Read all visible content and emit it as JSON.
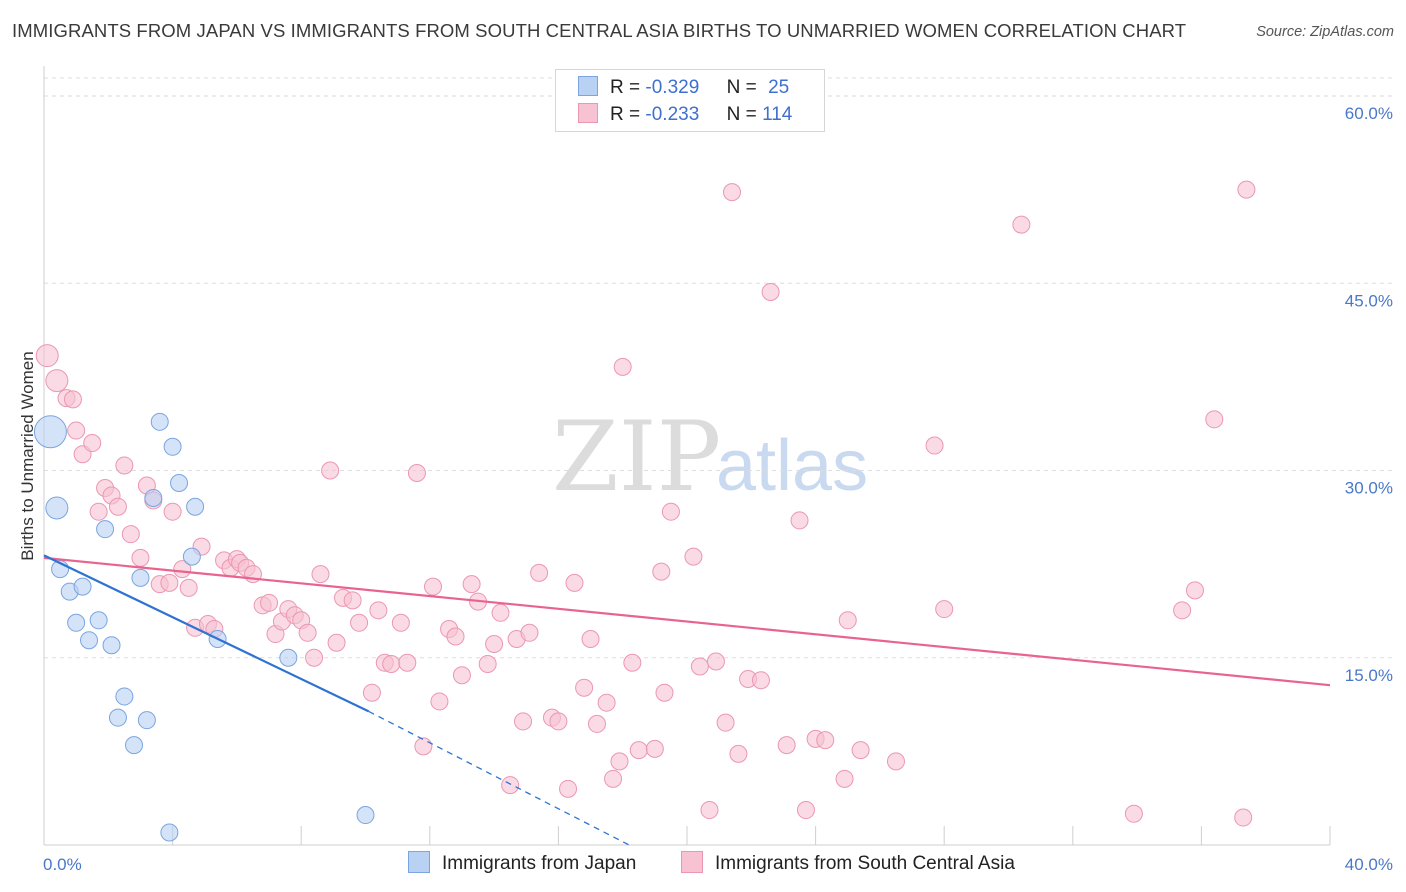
{
  "title": "IMMIGRANTS FROM JAPAN VS IMMIGRANTS FROM SOUTH CENTRAL ASIA BIRTHS TO UNMARRIED WOMEN CORRELATION CHART",
  "source": "Source: ZipAtlas.com",
  "watermark": {
    "zip": "ZIP",
    "atlas": "atlas"
  },
  "legend": {
    "r_label": "R =",
    "n_label": "N =",
    "series": [
      {
        "name": "Immigrants from Japan",
        "r": "-0.329",
        "n": "25"
      },
      {
        "name": "Immigrants from South Central Asia",
        "r": "-0.233",
        "n": "114"
      }
    ]
  },
  "colors": {
    "japan_fill": "#b9d1f3",
    "japan_stroke": "#7aa5e0",
    "japan_line": "#2f73d2",
    "sca_fill": "#f7c2d2",
    "sca_stroke": "#ec97b2",
    "sca_line": "#e8648f",
    "tick": "#4a78c9",
    "grid": "#dddddd"
  },
  "chart_data": {
    "type": "scatter",
    "title": "IMMIGRANTS FROM JAPAN VS IMMIGRANTS FROM SOUTH CENTRAL ASIA BIRTHS TO UNMARRIED WOMEN CORRELATION CHART",
    "xlabel": "",
    "ylabel": "Births to Unmarried Women",
    "xlim": [
      0,
      40
    ],
    "ylim": [
      0,
      60
    ],
    "x_ticks": [
      {
        "v": 0,
        "label": "0.0%"
      },
      {
        "v": 40,
        "label": "40.0%"
      }
    ],
    "y_ticks": [
      {
        "v": 15,
        "label": "15.0%"
      },
      {
        "v": 30,
        "label": "30.0%"
      },
      {
        "v": 45,
        "label": "45.0%"
      },
      {
        "v": 60,
        "label": "60.0%"
      }
    ],
    "series": [
      {
        "name": "Immigrants from Japan",
        "trend": {
          "x0": 0,
          "y0": 23.2,
          "x1": 10.1,
          "y1": 10.7,
          "dash_x1": 18.2,
          "dash_y1": 0
        },
        "points": [
          {
            "x": 0.2,
            "y": 33.1,
            "s": 3
          },
          {
            "x": 0.4,
            "y": 27.0,
            "s": 2
          },
          {
            "x": 0.5,
            "y": 22.1,
            "s": 1
          },
          {
            "x": 0.8,
            "y": 20.3,
            "s": 1
          },
          {
            "x": 1.2,
            "y": 20.7,
            "s": 1
          },
          {
            "x": 1.0,
            "y": 17.8,
            "s": 1
          },
          {
            "x": 1.4,
            "y": 16.4,
            "s": 1
          },
          {
            "x": 1.7,
            "y": 18.0,
            "s": 1
          },
          {
            "x": 2.1,
            "y": 16.0,
            "s": 1
          },
          {
            "x": 1.9,
            "y": 25.3,
            "s": 1
          },
          {
            "x": 2.5,
            "y": 11.9,
            "s": 1
          },
          {
            "x": 2.3,
            "y": 10.2,
            "s": 1
          },
          {
            "x": 2.8,
            "y": 8.0,
            "s": 1
          },
          {
            "x": 3.2,
            "y": 10.0,
            "s": 1
          },
          {
            "x": 3.0,
            "y": 21.4,
            "s": 1
          },
          {
            "x": 3.4,
            "y": 27.8,
            "s": 1
          },
          {
            "x": 3.6,
            "y": 33.9,
            "s": 1
          },
          {
            "x": 4.0,
            "y": 31.9,
            "s": 1
          },
          {
            "x": 4.2,
            "y": 29.0,
            "s": 1
          },
          {
            "x": 4.7,
            "y": 27.1,
            "s": 1
          },
          {
            "x": 4.6,
            "y": 23.1,
            "s": 1
          },
          {
            "x": 5.4,
            "y": 16.5,
            "s": 1
          },
          {
            "x": 7.6,
            "y": 15.0,
            "s": 1
          },
          {
            "x": 10.0,
            "y": 2.4,
            "s": 1
          },
          {
            "x": 3.9,
            "y": 1.0,
            "s": 1
          }
        ]
      },
      {
        "name": "Immigrants from South Central Asia",
        "trend": {
          "x0": 0,
          "y0": 23.0,
          "x1": 40,
          "y1": 12.8
        },
        "points": [
          {
            "x": 0.1,
            "y": 39.2,
            "s": 2
          },
          {
            "x": 0.4,
            "y": 37.2,
            "s": 2
          },
          {
            "x": 0.7,
            "y": 35.8,
            "s": 1
          },
          {
            "x": 0.9,
            "y": 35.7,
            "s": 1
          },
          {
            "x": 1.0,
            "y": 33.2,
            "s": 1
          },
          {
            "x": 1.2,
            "y": 31.3,
            "s": 1
          },
          {
            "x": 1.5,
            "y": 32.2,
            "s": 1
          },
          {
            "x": 1.7,
            "y": 26.7,
            "s": 1
          },
          {
            "x": 1.9,
            "y": 28.6,
            "s": 1
          },
          {
            "x": 2.1,
            "y": 28.0,
            "s": 1
          },
          {
            "x": 2.3,
            "y": 27.1,
            "s": 1
          },
          {
            "x": 2.5,
            "y": 30.4,
            "s": 1
          },
          {
            "x": 2.7,
            "y": 24.9,
            "s": 1
          },
          {
            "x": 3.0,
            "y": 23.0,
            "s": 1
          },
          {
            "x": 3.2,
            "y": 28.8,
            "s": 1
          },
          {
            "x": 3.4,
            "y": 27.6,
            "s": 1
          },
          {
            "x": 3.6,
            "y": 20.9,
            "s": 1
          },
          {
            "x": 3.9,
            "y": 21.0,
            "s": 1
          },
          {
            "x": 4.0,
            "y": 26.7,
            "s": 1
          },
          {
            "x": 4.3,
            "y": 22.1,
            "s": 1
          },
          {
            "x": 4.5,
            "y": 20.6,
            "s": 1
          },
          {
            "x": 4.7,
            "y": 17.4,
            "s": 1
          },
          {
            "x": 4.9,
            "y": 23.9,
            "s": 1
          },
          {
            "x": 5.1,
            "y": 17.7,
            "s": 1
          },
          {
            "x": 5.3,
            "y": 17.3,
            "s": 1
          },
          {
            "x": 5.6,
            "y": 22.8,
            "s": 1
          },
          {
            "x": 5.8,
            "y": 22.2,
            "s": 1
          },
          {
            "x": 6.0,
            "y": 22.9,
            "s": 1
          },
          {
            "x": 6.1,
            "y": 22.6,
            "s": 1
          },
          {
            "x": 6.3,
            "y": 22.2,
            "s": 1
          },
          {
            "x": 6.5,
            "y": 21.7,
            "s": 1
          },
          {
            "x": 6.8,
            "y": 19.2,
            "s": 1
          },
          {
            "x": 7.0,
            "y": 19.4,
            "s": 1
          },
          {
            "x": 7.2,
            "y": 16.9,
            "s": 1
          },
          {
            "x": 7.4,
            "y": 17.9,
            "s": 1
          },
          {
            "x": 7.6,
            "y": 18.9,
            "s": 1
          },
          {
            "x": 7.8,
            "y": 18.4,
            "s": 1
          },
          {
            "x": 8.0,
            "y": 18.0,
            "s": 1
          },
          {
            "x": 8.2,
            "y": 17.0,
            "s": 1
          },
          {
            "x": 8.4,
            "y": 15.0,
            "s": 1
          },
          {
            "x": 8.6,
            "y": 21.7,
            "s": 1
          },
          {
            "x": 8.9,
            "y": 30.0,
            "s": 1
          },
          {
            "x": 9.1,
            "y": 16.2,
            "s": 1
          },
          {
            "x": 9.3,
            "y": 19.8,
            "s": 1
          },
          {
            "x": 9.6,
            "y": 19.6,
            "s": 1
          },
          {
            "x": 9.8,
            "y": 17.8,
            "s": 1
          },
          {
            "x": 10.2,
            "y": 12.2,
            "s": 1
          },
          {
            "x": 10.4,
            "y": 18.8,
            "s": 1
          },
          {
            "x": 10.6,
            "y": 14.6,
            "s": 1
          },
          {
            "x": 10.8,
            "y": 14.5,
            "s": 1
          },
          {
            "x": 11.1,
            "y": 17.8,
            "s": 1
          },
          {
            "x": 11.3,
            "y": 14.6,
            "s": 1
          },
          {
            "x": 11.6,
            "y": 29.8,
            "s": 1
          },
          {
            "x": 11.8,
            "y": 7.9,
            "s": 1
          },
          {
            "x": 12.1,
            "y": 20.7,
            "s": 1
          },
          {
            "x": 12.3,
            "y": 11.5,
            "s": 1
          },
          {
            "x": 12.6,
            "y": 17.3,
            "s": 1
          },
          {
            "x": 12.8,
            "y": 16.7,
            "s": 1
          },
          {
            "x": 13.0,
            "y": 13.6,
            "s": 1
          },
          {
            "x": 13.3,
            "y": 20.9,
            "s": 1
          },
          {
            "x": 13.5,
            "y": 19.5,
            "s": 1
          },
          {
            "x": 13.8,
            "y": 14.5,
            "s": 1
          },
          {
            "x": 14.0,
            "y": 16.1,
            "s": 1
          },
          {
            "x": 14.2,
            "y": 18.6,
            "s": 1
          },
          {
            "x": 14.5,
            "y": 4.8,
            "s": 1
          },
          {
            "x": 14.7,
            "y": 16.5,
            "s": 1
          },
          {
            "x": 14.9,
            "y": 9.9,
            "s": 1
          },
          {
            "x": 15.1,
            "y": 17.0,
            "s": 1
          },
          {
            "x": 15.4,
            "y": 21.8,
            "s": 1
          },
          {
            "x": 15.8,
            "y": 10.2,
            "s": 1
          },
          {
            "x": 16.0,
            "y": 9.9,
            "s": 1
          },
          {
            "x": 16.3,
            "y": 4.5,
            "s": 1
          },
          {
            "x": 16.5,
            "y": 21.0,
            "s": 1
          },
          {
            "x": 16.8,
            "y": 12.6,
            "s": 1
          },
          {
            "x": 17.0,
            "y": 16.5,
            "s": 1
          },
          {
            "x": 17.2,
            "y": 9.7,
            "s": 1
          },
          {
            "x": 17.5,
            "y": 11.4,
            "s": 1
          },
          {
            "x": 17.7,
            "y": 5.3,
            "s": 1
          },
          {
            "x": 17.9,
            "y": 6.7,
            "s": 1
          },
          {
            "x": 18.0,
            "y": 38.3,
            "s": 1
          },
          {
            "x": 18.3,
            "y": 14.6,
            "s": 1
          },
          {
            "x": 18.5,
            "y": 7.6,
            "s": 1
          },
          {
            "x": 19.0,
            "y": 7.7,
            "s": 1
          },
          {
            "x": 19.3,
            "y": 12.2,
            "s": 1
          },
          {
            "x": 19.5,
            "y": 26.7,
            "s": 1
          },
          {
            "x": 19.2,
            "y": 21.9,
            "s": 1
          },
          {
            "x": 20.2,
            "y": 23.1,
            "s": 1
          },
          {
            "x": 20.4,
            "y": 14.3,
            "s": 1
          },
          {
            "x": 20.7,
            "y": 2.8,
            "s": 1
          },
          {
            "x": 20.9,
            "y": 14.7,
            "s": 1
          },
          {
            "x": 21.2,
            "y": 9.8,
            "s": 1
          },
          {
            "x": 21.4,
            "y": 52.3,
            "s": 1
          },
          {
            "x": 21.6,
            "y": 7.3,
            "s": 1
          },
          {
            "x": 21.9,
            "y": 13.3,
            "s": 1
          },
          {
            "x": 22.3,
            "y": 13.2,
            "s": 1
          },
          {
            "x": 22.6,
            "y": 44.3,
            "s": 1
          },
          {
            "x": 23.1,
            "y": 8.0,
            "s": 1
          },
          {
            "x": 23.5,
            "y": 26.0,
            "s": 1
          },
          {
            "x": 23.7,
            "y": 2.8,
            "s": 1
          },
          {
            "x": 24.0,
            "y": 8.5,
            "s": 1
          },
          {
            "x": 24.3,
            "y": 8.4,
            "s": 1
          },
          {
            "x": 24.9,
            "y": 5.3,
            "s": 1
          },
          {
            "x": 25.0,
            "y": 18.0,
            "s": 1
          },
          {
            "x": 25.4,
            "y": 7.6,
            "s": 1
          },
          {
            "x": 26.5,
            "y": 6.7,
            "s": 1
          },
          {
            "x": 27.7,
            "y": 32.0,
            "s": 1
          },
          {
            "x": 28.0,
            "y": 18.9,
            "s": 1
          },
          {
            "x": 30.4,
            "y": 49.7,
            "s": 1
          },
          {
            "x": 33.9,
            "y": 2.5,
            "s": 1
          },
          {
            "x": 35.4,
            "y": 18.8,
            "s": 1
          },
          {
            "x": 35.8,
            "y": 20.4,
            "s": 1
          },
          {
            "x": 36.4,
            "y": 34.1,
            "s": 1
          },
          {
            "x": 37.3,
            "y": 2.2,
            "s": 1
          },
          {
            "x": 37.4,
            "y": 52.5,
            "s": 1
          }
        ]
      }
    ]
  }
}
